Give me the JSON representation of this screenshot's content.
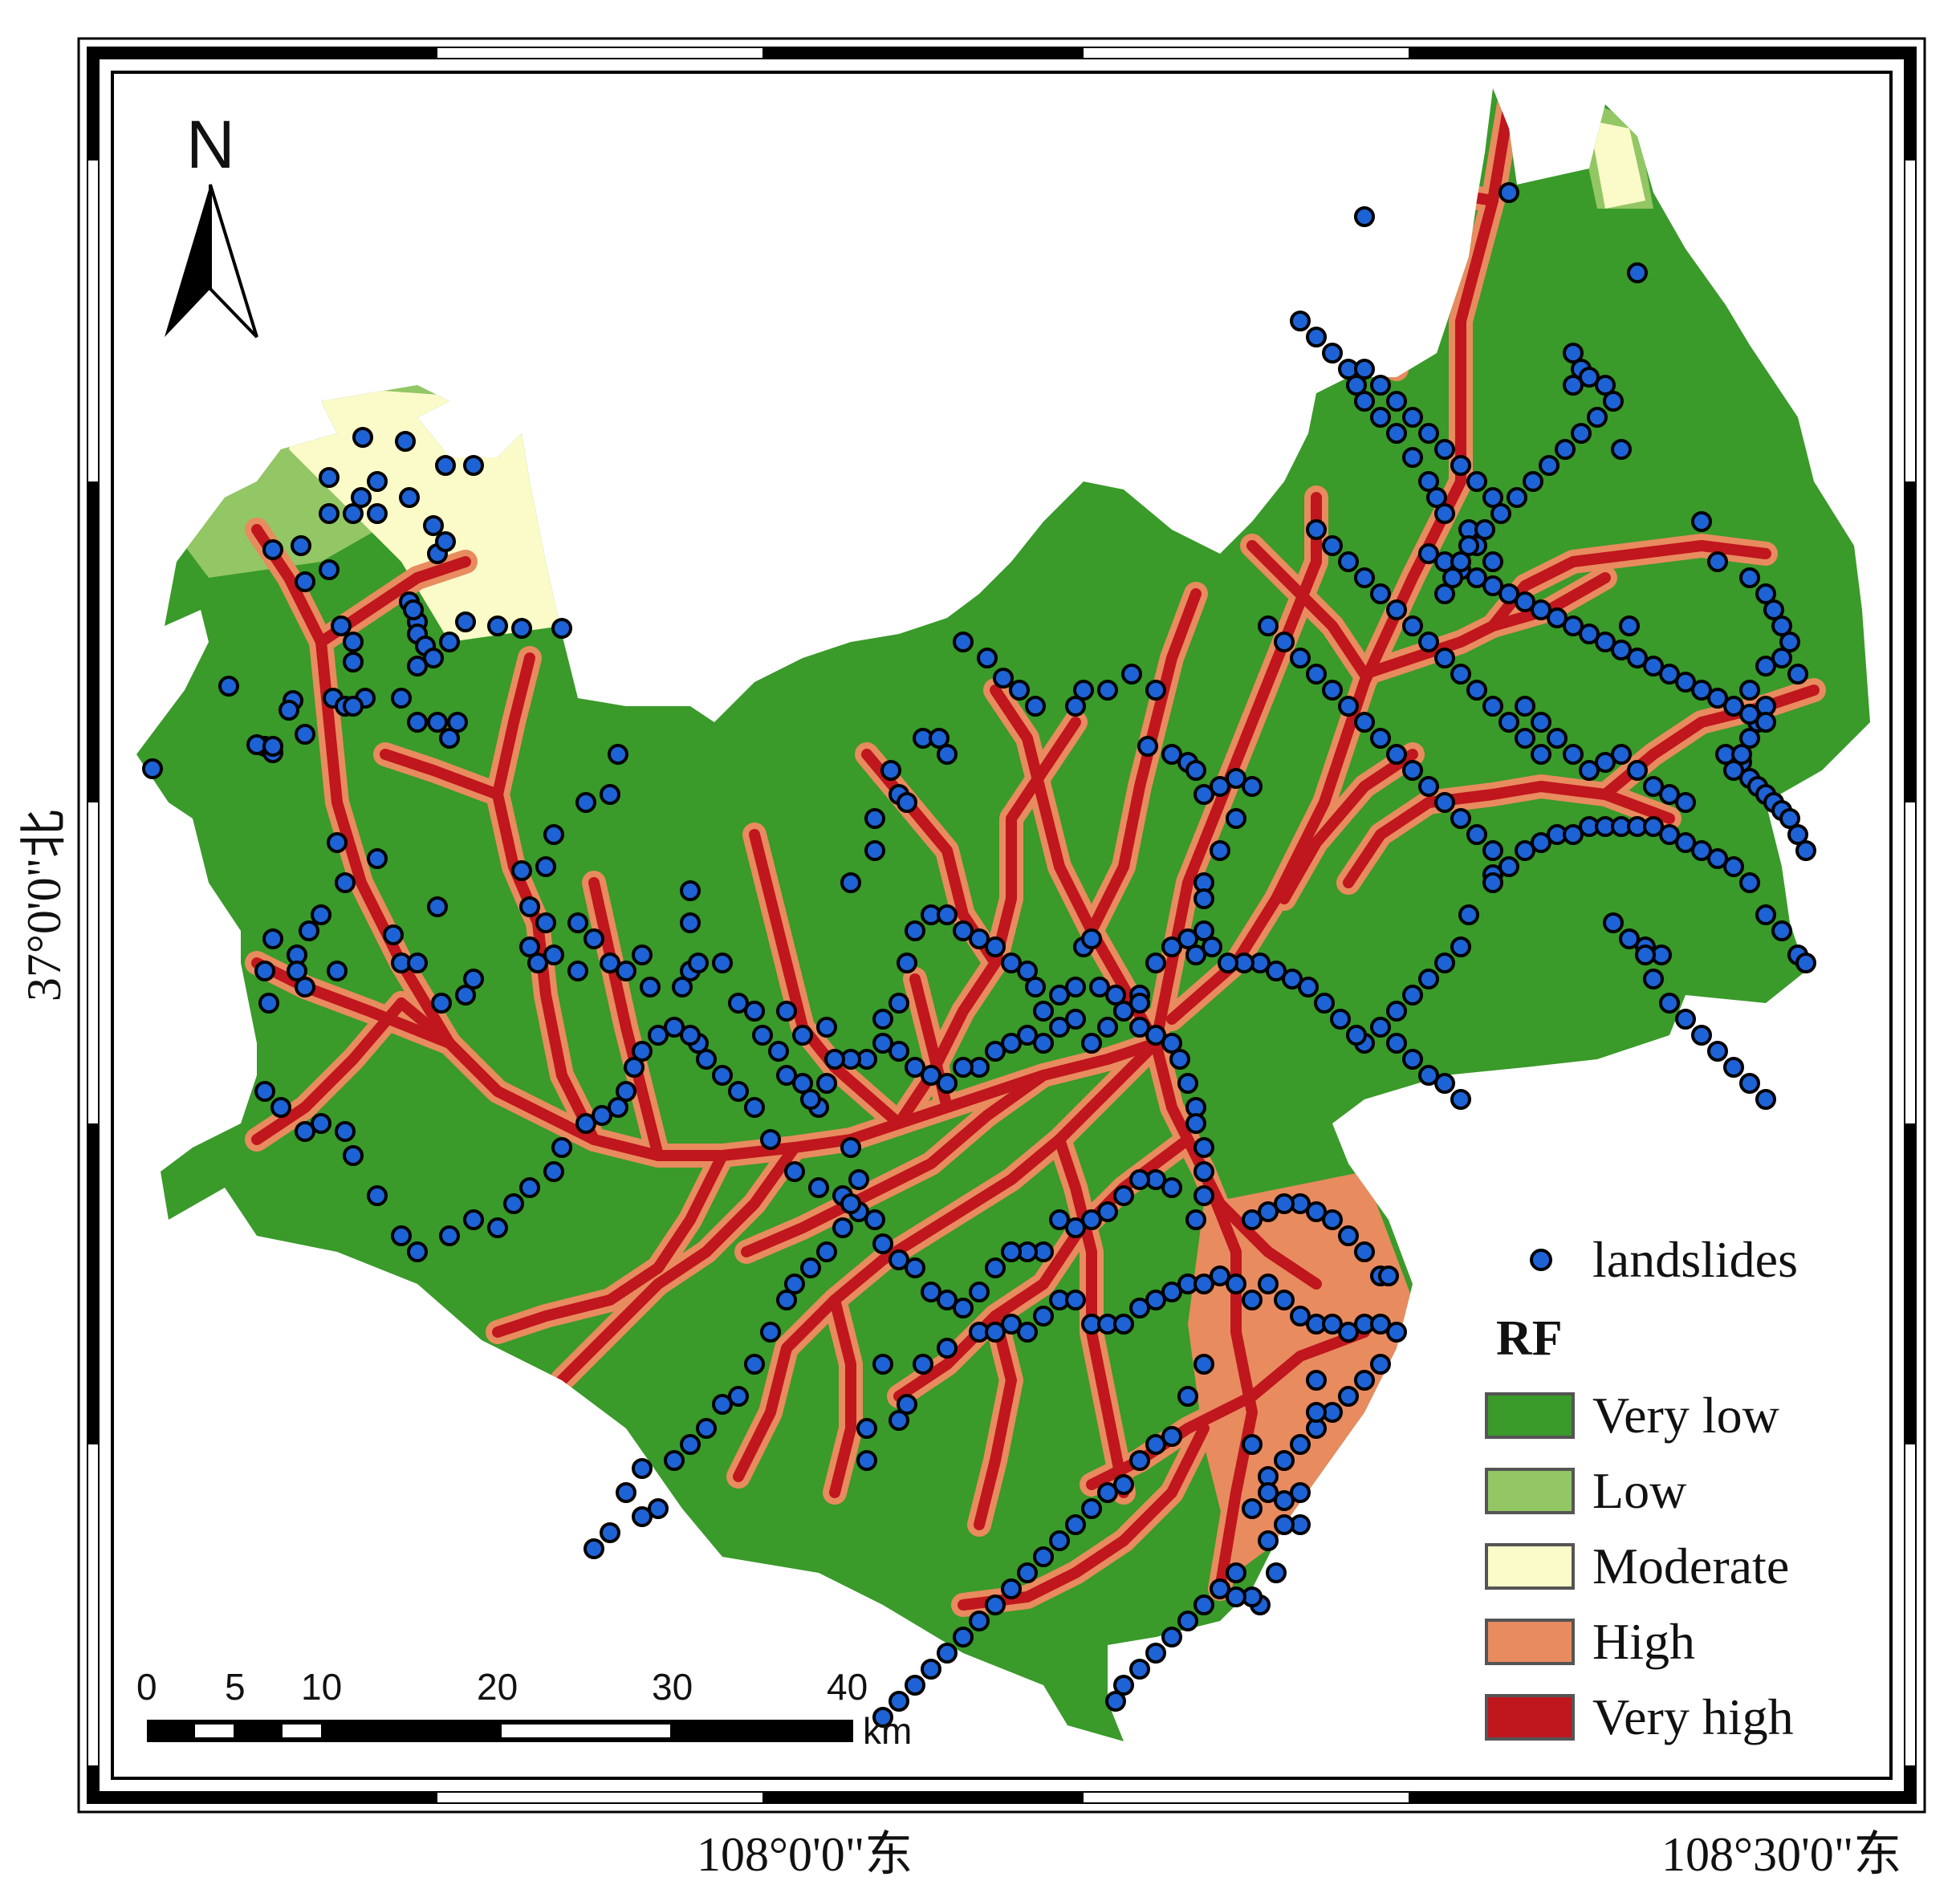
{
  "map": {
    "north_label": "N",
    "coord_labels": {
      "lon_1": "108°0'0\"东",
      "lon_2": "108°30'0\"东",
      "lat_1": "37°0'0\"北"
    },
    "legend": {
      "points_label": "landslides",
      "title": "RF",
      "classes": [
        {
          "label": "Very low",
          "color": "#3a9a2a"
        },
        {
          "label": "Low",
          "color": "#93c664"
        },
        {
          "label": "Moderate",
          "color": "#fafbc8"
        },
        {
          "label": "High",
          "color": "#e88b5f"
        },
        {
          "label": "Very high",
          "color": "#c0161d"
        }
      ]
    },
    "scale_bar": {
      "ticks": [
        "0",
        "5",
        "10",
        "20",
        "30",
        "40"
      ],
      "unit": "km"
    },
    "point_color": "#1e63d6"
  }
}
